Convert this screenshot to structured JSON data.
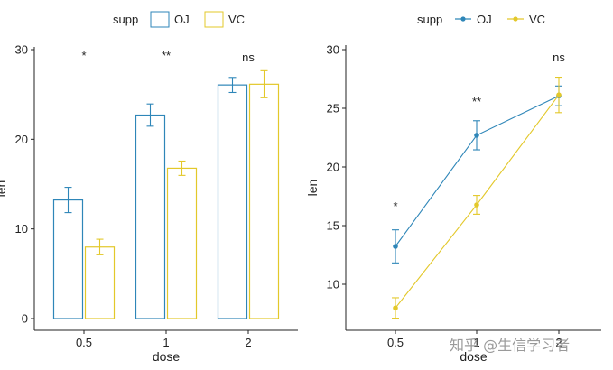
{
  "colors": {
    "OJ": "#2E86B8",
    "VC": "#E3C82A",
    "axis": "#222222"
  },
  "watermark": "知乎 @生信学习者",
  "chart_data": [
    {
      "type": "bar",
      "legend": {
        "title": "supp",
        "entries": [
          "OJ",
          "VC"
        ],
        "position": "top"
      },
      "xlabel": "dose",
      "ylabel": "len",
      "categories": [
        "0.5",
        "1",
        "2"
      ],
      "ylim": [
        0,
        30
      ],
      "yticks": [
        0,
        10,
        20,
        30
      ],
      "series": [
        {
          "name": "OJ",
          "values": [
            13.23,
            22.7,
            26.06
          ],
          "se": [
            1.41,
            1.24,
            0.84
          ]
        },
        {
          "name": "VC",
          "values": [
            7.98,
            16.77,
            26.14
          ],
          "se": [
            0.87,
            0.8,
            1.51
          ]
        }
      ],
      "significance": [
        "*",
        "**",
        "ns"
      ]
    },
    {
      "type": "line",
      "legend": {
        "title": "supp",
        "entries": [
          "OJ",
          "VC"
        ],
        "position": "top"
      },
      "xlabel": "dose",
      "ylabel": "len",
      "categories": [
        "0.5",
        "1",
        "2"
      ],
      "ylim": [
        7,
        30
      ],
      "yticks": [
        10,
        15,
        20,
        25,
        30
      ],
      "series": [
        {
          "name": "OJ",
          "values": [
            13.23,
            22.7,
            26.06
          ],
          "se": [
            1.41,
            1.24,
            0.84
          ]
        },
        {
          "name": "VC",
          "values": [
            7.98,
            16.77,
            26.14
          ],
          "se": [
            0.87,
            0.8,
            1.51
          ]
        }
      ],
      "significance": [
        "*",
        "**",
        "ns"
      ]
    }
  ]
}
